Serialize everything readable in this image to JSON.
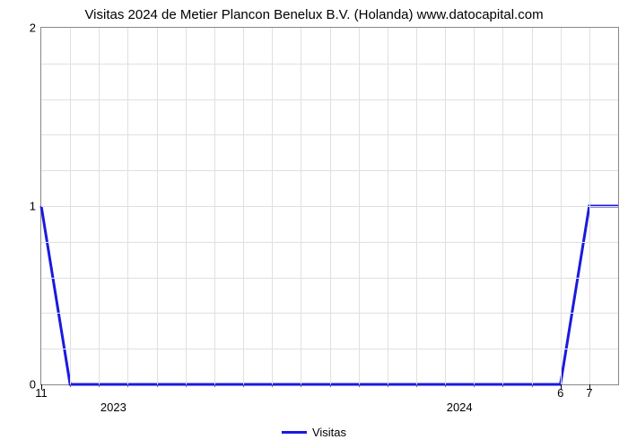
{
  "chart": {
    "type": "line",
    "title": "Visitas 2024 de Metier Plancon Benelux B.V. (Holanda) www.datocapital.com",
    "title_fontsize": 15,
    "background_color": "#ffffff",
    "grid_color": "#e0e0e0",
    "axis_color": "#888888",
    "line_color": "#1a1adf",
    "line_width": 3,
    "x_range": [
      0,
      20
    ],
    "y_range": [
      0,
      2
    ],
    "y_ticks": [
      0,
      1,
      2
    ],
    "y_minor_divisions": 5,
    "x_major_at": [
      0,
      18,
      19
    ],
    "x_major_labels": [
      "11",
      "6",
      "7"
    ],
    "x_year_markers": [
      {
        "pos": 2.5,
        "label": "2023"
      },
      {
        "pos": 14.5,
        "label": "2024"
      }
    ],
    "x_minor_ticks": [
      1,
      2,
      3,
      4,
      5,
      6,
      7,
      8,
      9,
      10,
      11,
      12,
      13,
      14,
      15,
      16,
      17
    ],
    "vgrid_count": 20,
    "data_points": [
      {
        "x": 0,
        "y": 1
      },
      {
        "x": 1,
        "y": 0
      },
      {
        "x": 2,
        "y": 0
      },
      {
        "x": 3,
        "y": 0
      },
      {
        "x": 4,
        "y": 0
      },
      {
        "x": 5,
        "y": 0
      },
      {
        "x": 6,
        "y": 0
      },
      {
        "x": 7,
        "y": 0
      },
      {
        "x": 8,
        "y": 0
      },
      {
        "x": 9,
        "y": 0
      },
      {
        "x": 10,
        "y": 0
      },
      {
        "x": 11,
        "y": 0
      },
      {
        "x": 12,
        "y": 0
      },
      {
        "x": 13,
        "y": 0
      },
      {
        "x": 14,
        "y": 0
      },
      {
        "x": 15,
        "y": 0
      },
      {
        "x": 16,
        "y": 0
      },
      {
        "x": 17,
        "y": 0
      },
      {
        "x": 18,
        "y": 0
      },
      {
        "x": 19,
        "y": 1
      },
      {
        "x": 20,
        "y": 1
      }
    ],
    "legend_label": "Visitas"
  }
}
